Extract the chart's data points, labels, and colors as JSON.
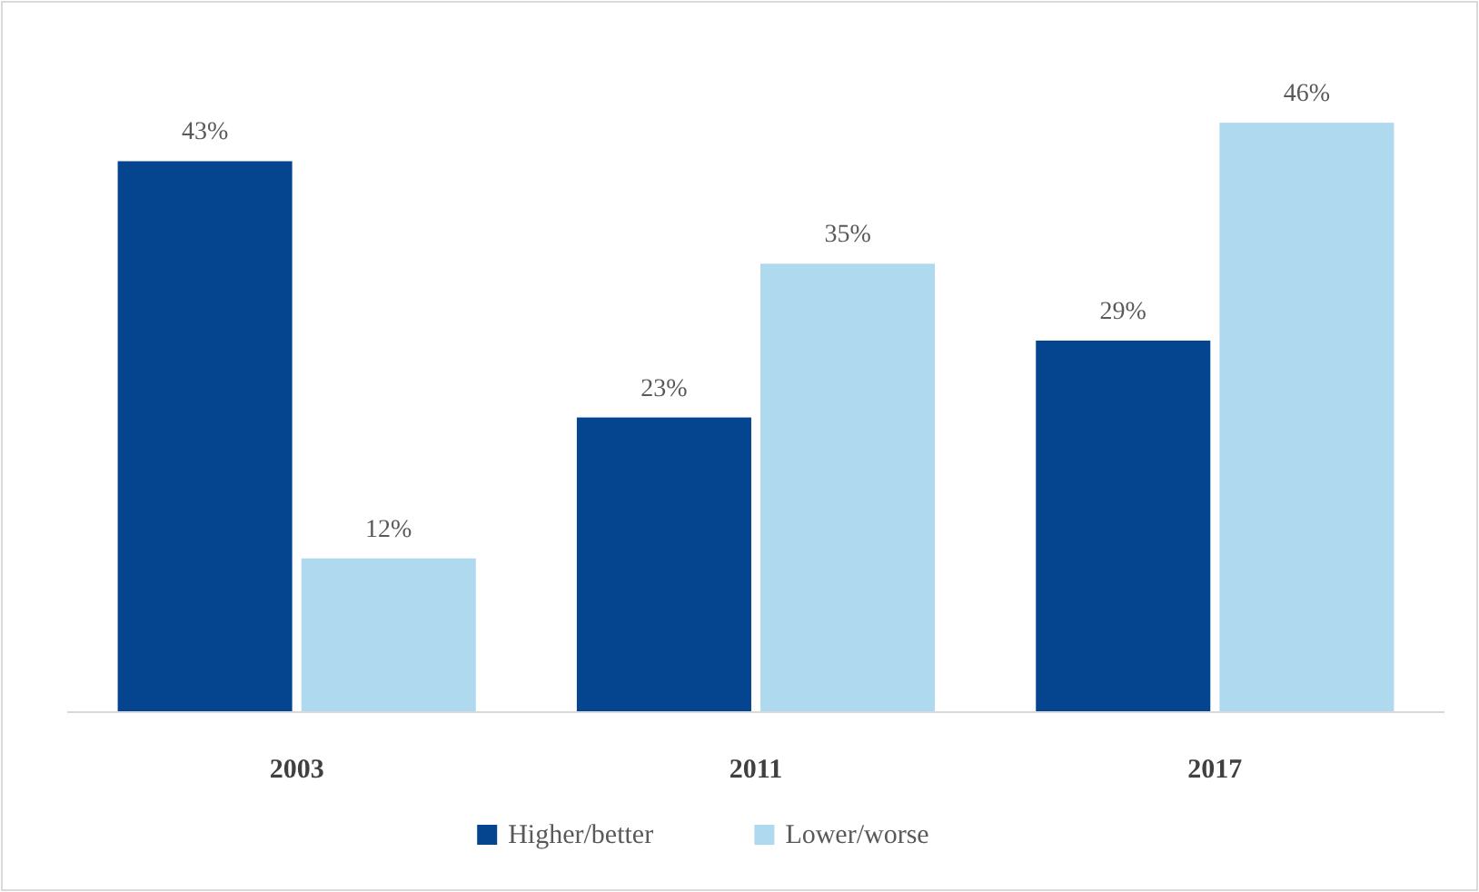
{
  "chart_data": {
    "type": "bar",
    "categories": [
      "2003",
      "2011",
      "2017"
    ],
    "series": [
      {
        "name": "Higher/better",
        "color": "#054590",
        "values": [
          43,
          23,
          29
        ],
        "value_labels": [
          "43%",
          "23%",
          "29%"
        ]
      },
      {
        "name": "Lower/worse",
        "color": "#aed9ee",
        "values": [
          12,
          35,
          46
        ],
        "value_labels": [
          "12%",
          "35%",
          "46%"
        ]
      }
    ],
    "legend": "bottom"
  }
}
